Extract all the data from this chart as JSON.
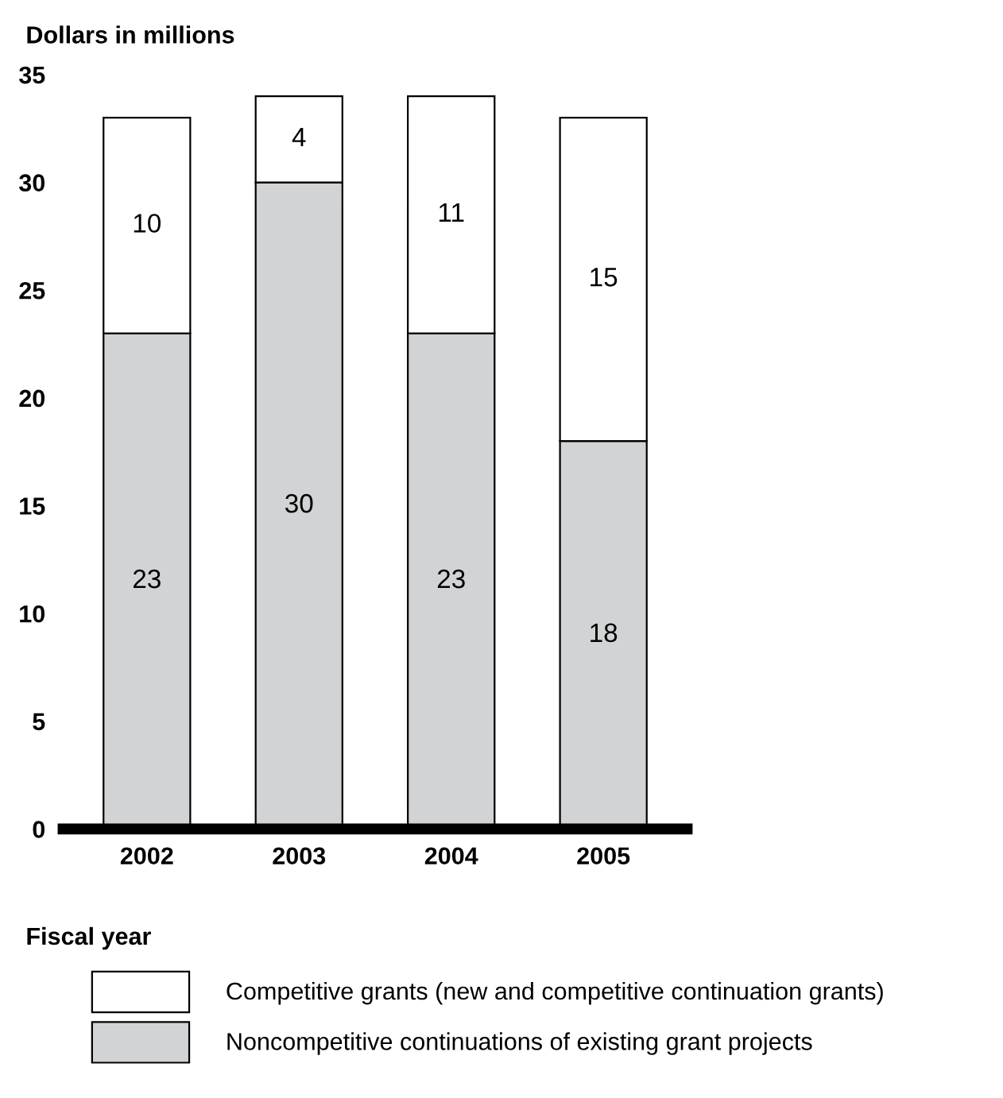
{
  "chart_data": {
    "type": "bar",
    "stacked": true,
    "ylabel": "Dollars in millions",
    "xlabel": "Fiscal year",
    "categories": [
      "2002",
      "2003",
      "2004",
      "2005"
    ],
    "series": [
      {
        "name": "Noncompetitive continuations of existing grant projects",
        "color": "#d1d3d4",
        "values": [
          23,
          30,
          23,
          18
        ]
      },
      {
        "name": "Competitive grants (new and competitive continuation grants)",
        "color": "#ffffff",
        "values": [
          10,
          4,
          11,
          15
        ]
      }
    ],
    "ylim": [
      0,
      35
    ],
    "yticks": [
      0,
      5,
      10,
      15,
      20,
      25,
      30,
      35
    ],
    "data_labels": true,
    "legend": "bottom",
    "grid": false
  }
}
